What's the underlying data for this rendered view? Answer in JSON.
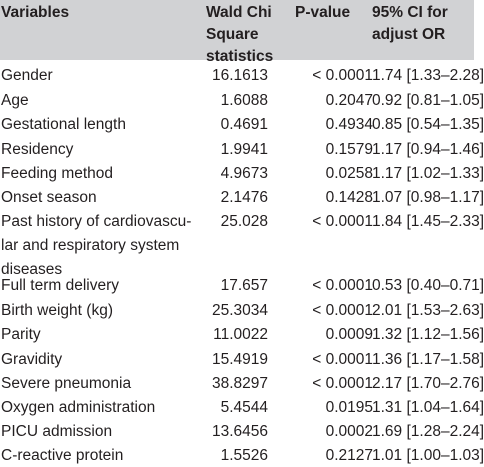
{
  "header": {
    "variables": "Variables",
    "wald_line1": "Wald Chi",
    "wald_line2": "Square",
    "wald_line3": "statistics",
    "p_value": "P-value",
    "ci_line1": "95% CI for",
    "ci_line2": "adjust OR"
  },
  "rows": [
    {
      "variable": "Gender",
      "wald": "16.1613",
      "p": "< 0.0001",
      "ci": "1.74 [1.33–2.28]"
    },
    {
      "variable": "Age",
      "wald": "1.6088",
      "p": "0.2047",
      "ci": "0.92 [0.81–1.05]"
    },
    {
      "variable": "Gestational length",
      "wald": "0.4691",
      "p": "0.4934",
      "ci": "0.85 [0.54–1.35]"
    },
    {
      "variable": "Residency",
      "wald": "1.9941",
      "p": "0.1579",
      "ci": "1.17 [0.94–1.46]"
    },
    {
      "variable": "Feeding method",
      "wald": "4.9673",
      "p": "0.0258",
      "ci": "1.17 [1.02–1.33]"
    },
    {
      "variable": "Onset season",
      "wald": "2.1476",
      "p": "0.1428",
      "ci": "1.07 [0.98–1.17]"
    },
    {
      "variable_line1": "Past history of cardiovascu-",
      "variable_line2": "lar and respiratory system",
      "variable_line3": "diseases",
      "wald": "25.028",
      "p": "< 0.0001",
      "ci": "1.84 [1.45–2.33]"
    },
    {
      "variable": "Full term delivery",
      "wald": "17.657",
      "p": "< 0.0001",
      "ci": "0.53 [0.40–0.71]"
    },
    {
      "variable": "Birth weight (kg)",
      "wald": "25.3034",
      "p": "< 0.0001",
      "ci": "2.01 [1.53–2.63]"
    },
    {
      "variable": "Parity",
      "wald": "11.0022",
      "p": "0.0009",
      "ci": "1.32 [1.12–1.56]"
    },
    {
      "variable": "Gravidity",
      "wald": "15.4919",
      "p": "< 0.0001",
      "ci": "1.36 [1.17–1.58]"
    },
    {
      "variable": "Severe pneumonia",
      "wald": "38.8297",
      "p": "< 0.0001",
      "ci": "2.17 [1.70–2.76]"
    },
    {
      "variable": "Oxygen administration",
      "wald": "5.4544",
      "p": "0.0195",
      "ci": "1.31 [1.04–1.64]"
    },
    {
      "variable": "PICU admission",
      "wald": "13.6456",
      "p": "0.0002",
      "ci": "1.69 [1.28–2.24]"
    },
    {
      "variable": "C-reactive protein",
      "wald": "1.5526",
      "p": "0.2127",
      "ci": "1.01 [1.00–1.03]"
    }
  ]
}
